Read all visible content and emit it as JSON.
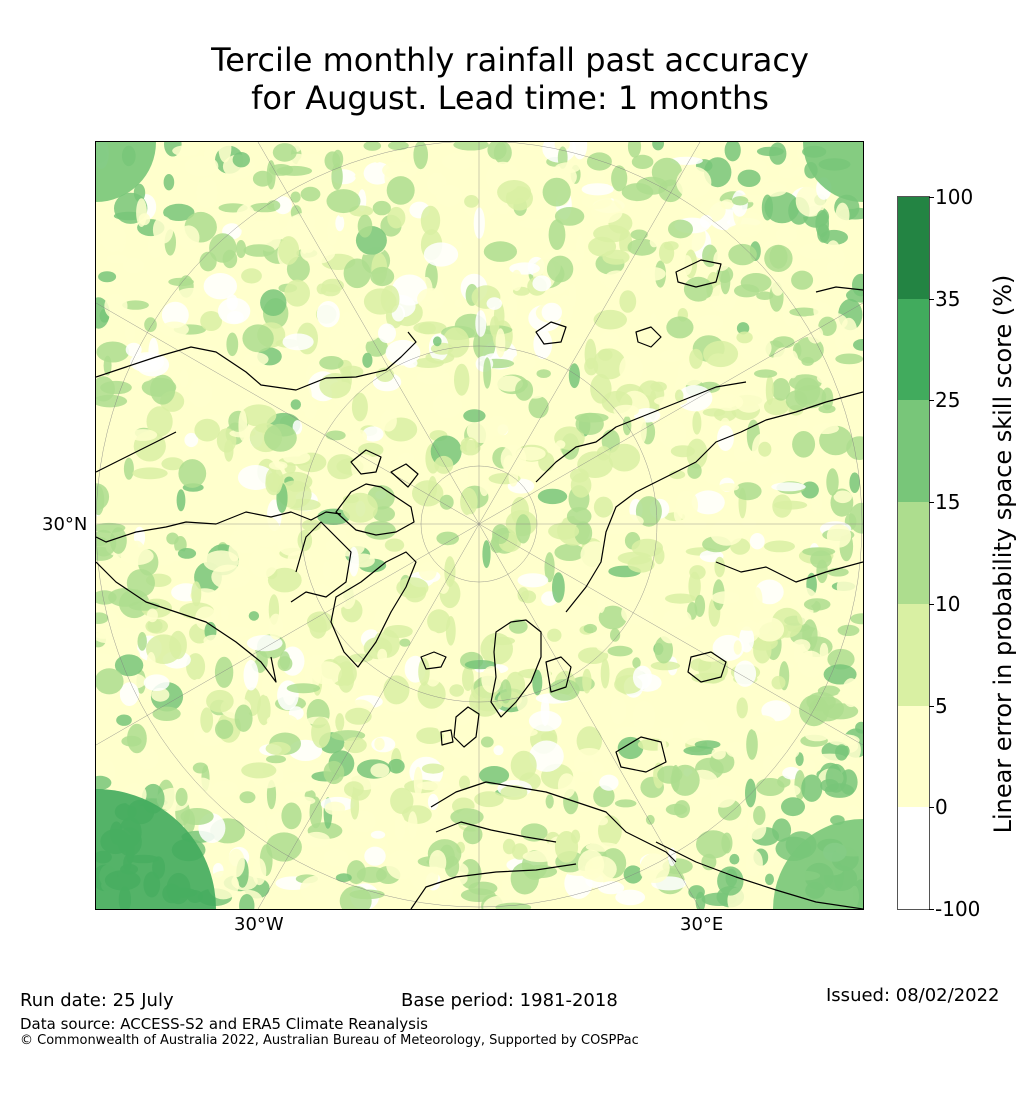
{
  "title": {
    "line1": "Tercile monthly rainfall past accuracy",
    "line2": "for August. Lead time: 1 months"
  },
  "map_labels": {
    "lat_30n": "30°N",
    "lon_30w": "30°W",
    "lon_30e": "30°E"
  },
  "colorbar": {
    "label": "Linear error in probability space skill score (%)",
    "ticks": [
      "100",
      "35",
      "25",
      "15",
      "10",
      "5",
      "0",
      "-100"
    ],
    "bins": [
      {
        "from": "35",
        "to": "100",
        "color": "#238443"
      },
      {
        "from": "25",
        "to": "35",
        "color": "#41ab5d"
      },
      {
        "from": "15",
        "to": "25",
        "color": "#78c679"
      },
      {
        "from": "10",
        "to": "15",
        "color": "#addd8e"
      },
      {
        "from": "5",
        "to": "10",
        "color": "#d9f0a3"
      },
      {
        "from": "0",
        "to": "5",
        "color": "#ffffcc"
      },
      {
        "from": "-100",
        "to": "0",
        "color": "#ffffff"
      }
    ]
  },
  "footer": {
    "run_date": "Run date: 25 July",
    "base_period": "Base period: 1981-2018",
    "issued": "Issued: 08/02/2022",
    "data_source": "Data source: ACCESS-S2 and ERA5 Climate Reanalysis",
    "copyright": "© Commonwealth of Australia 2022, Australian Bureau of Meteorology, Supported by COSPPac"
  }
}
